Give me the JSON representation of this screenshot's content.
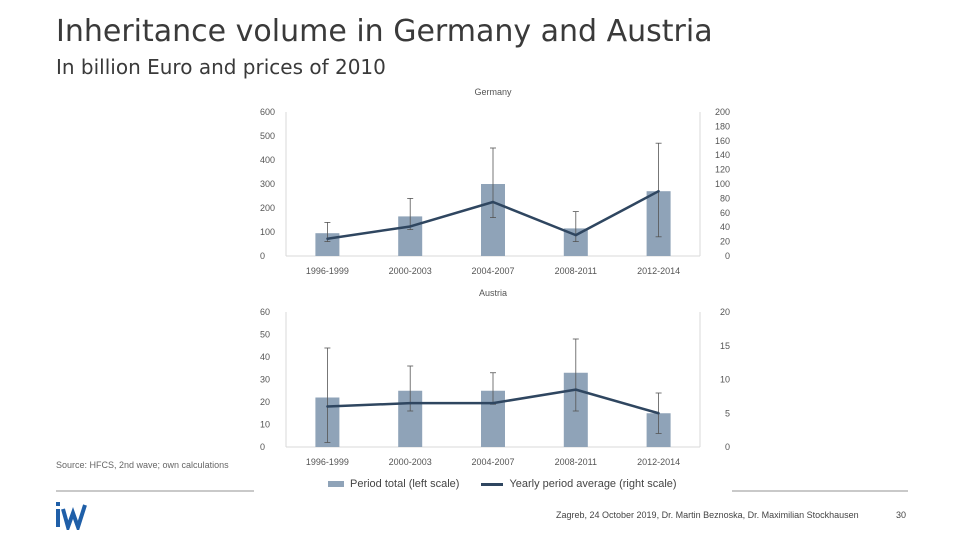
{
  "slide": {
    "title": "Inheritance volume in Germany and Austria",
    "subtitle": "In billion Euro and prices of 2010",
    "source": "Source: HFCS, 2nd wave; own calculations",
    "footer": "Zagreb, 24 October 2019, Dr. Martin Beznoska, Dr. Maximilian Stockhausen",
    "page_number": "30",
    "logo_text": "iW",
    "legend": {
      "bars": "Period total (left scale)",
      "line": "Yearly period average (right scale)"
    },
    "colors": {
      "bar": "#8fa3b8",
      "line": "#2f4660",
      "error": "#555555",
      "grid": "#d9d9d9"
    }
  },
  "chart_data": [
    {
      "type": "bar",
      "title": "Germany",
      "categories": [
        "1996-1999",
        "2000-2003",
        "2004-2007",
        "2008-2011",
        "2012-2014"
      ],
      "series": [
        {
          "name": "Period total (left scale)",
          "axis": "left",
          "values": [
            95,
            165,
            300,
            115,
            270
          ],
          "error_low": [
            60,
            110,
            160,
            60,
            80
          ],
          "error_high": [
            140,
            240,
            450,
            185,
            470
          ]
        },
        {
          "name": "Yearly period average (right scale)",
          "type": "line",
          "axis": "right",
          "values": [
            24,
            41,
            75,
            29,
            90
          ]
        }
      ],
      "ylim_left": [
        0,
        600
      ],
      "yticks_left": [
        0,
        100,
        200,
        300,
        400,
        500,
        600
      ],
      "ylim_right": [
        0,
        200
      ],
      "yticks_right": [
        0,
        20,
        40,
        60,
        80,
        100,
        120,
        140,
        160,
        180,
        200
      ]
    },
    {
      "type": "bar",
      "title": "Austria",
      "categories": [
        "1996-1999",
        "2000-2003",
        "2004-2007",
        "2008-2011",
        "2012-2014"
      ],
      "series": [
        {
          "name": "Period total (left scale)",
          "axis": "left",
          "values": [
            22,
            25,
            25,
            33,
            15
          ],
          "error_low": [
            2,
            16,
            19,
            16,
            6
          ],
          "error_high": [
            44,
            36,
            33,
            48,
            24
          ]
        },
        {
          "name": "Yearly period average (right scale)",
          "type": "line",
          "axis": "right",
          "values": [
            6,
            6.5,
            6.5,
            8.5,
            5
          ]
        }
      ],
      "ylim_left": [
        0,
        60
      ],
      "yticks_left": [
        0,
        10,
        20,
        30,
        40,
        50,
        60
      ],
      "ylim_right": [
        0,
        20
      ],
      "yticks_right": [
        0,
        5,
        10,
        15,
        20
      ]
    }
  ]
}
